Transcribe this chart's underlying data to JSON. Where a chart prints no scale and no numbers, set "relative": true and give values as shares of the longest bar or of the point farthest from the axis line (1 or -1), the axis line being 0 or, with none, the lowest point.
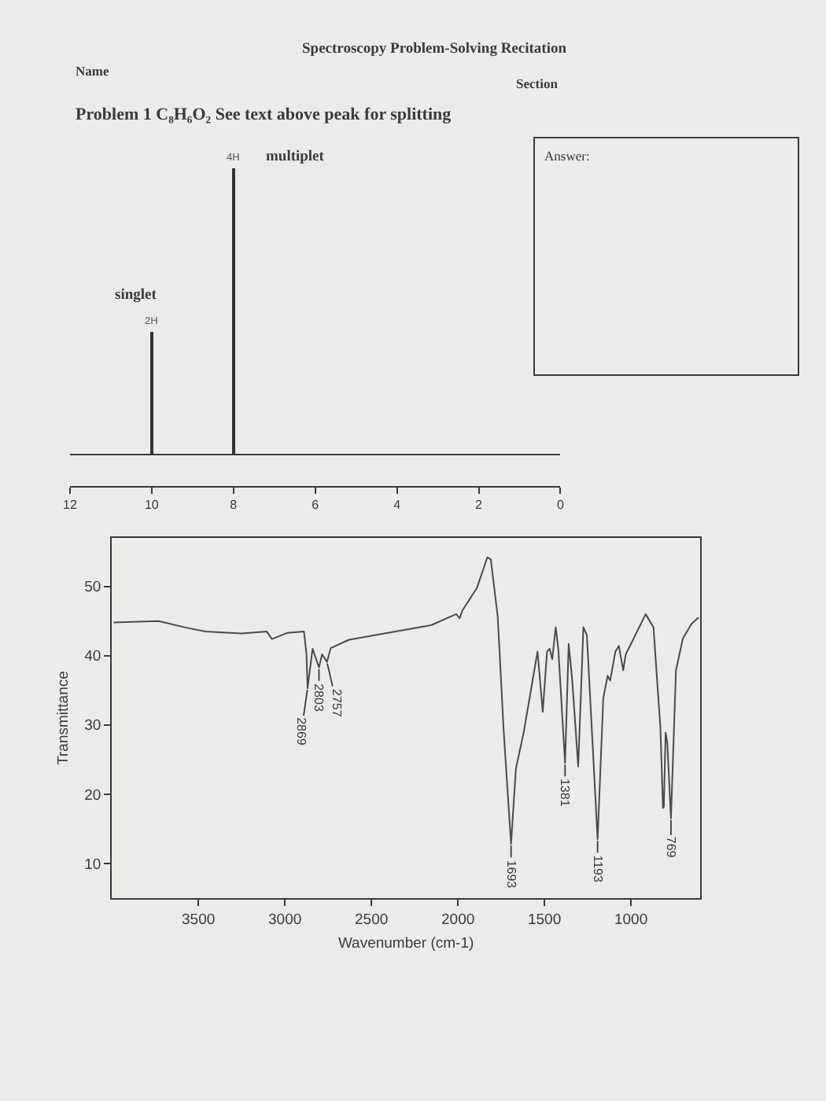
{
  "chart_data": [
    {
      "type": "bar",
      "title": "Spectroscopy Problem-Solving Recitation",
      "subtitle": "Problem 1 C₈H₆O₂ See text above peak for splitting",
      "x": [
        10,
        8
      ],
      "values": [
        0.43,
        1
      ],
      "relative": true,
      "color": "#333333",
      "xlim": [
        12,
        0
      ],
      "xticks": [
        12,
        10,
        8,
        6,
        4,
        2,
        0
      ],
      "tick_labels": "x",
      "annotations": [
        {
          "text": "singlet",
          "x": 10,
          "y": 0.43
        },
        {
          "text": "2H",
          "x": 10,
          "y": 0.43
        },
        {
          "text": "4H",
          "x": 8,
          "y": 1
        },
        {
          "text": "multiplet",
          "x": 8,
          "y": 1
        },
        "Name",
        "Section",
        "Answer:"
      ]
    },
    {
      "type": "line",
      "xlabel": "Wavenumber (cm-1)",
      "ylabel": "Transmittance",
      "color": "#4a4a4a",
      "xlim": [
        4000,
        600
      ],
      "ylim": [
        5,
        57
      ],
      "xticks": [
        3500,
        3000,
        2500,
        2000,
        1500,
        1000
      ],
      "yticks": [
        10,
        20,
        30,
        40,
        50
      ],
      "x": [
        3990,
        3730,
        3580,
        3460,
        3250,
        3105,
        3075,
        2985,
        2890,
        2875,
        2869,
        2840,
        2803,
        2785,
        2757,
        2735,
        2630,
        2335,
        2155,
        2010,
        1990,
        1975,
        1890,
        1830,
        1810,
        1770,
        1735,
        1693,
        1665,
        1620,
        1540,
        1510,
        1485,
        1470,
        1455,
        1435,
        1420,
        1381,
        1360,
        1340,
        1305,
        1275,
        1255,
        1193,
        1160,
        1135,
        1120,
        1090,
        1070,
        1045,
        1030,
        915,
        870,
        830,
        815,
        810,
        800,
        790,
        769,
        740,
        700,
        650,
        610
      ],
      "values": [
        44.8,
        45.0,
        44.1,
        43.5,
        43.2,
        43.5,
        42.4,
        43.3,
        43.5,
        40.2,
        35.3,
        41.0,
        38.3,
        40.2,
        39.1,
        41.1,
        42.3,
        43.6,
        44.4,
        46.0,
        45.4,
        46.5,
        49.8,
        54.2,
        53.9,
        45.6,
        28.9,
        12.8,
        23.7,
        28.9,
        40.6,
        31.9,
        40.6,
        41.0,
        39.5,
        44.1,
        41.0,
        24.5,
        41.7,
        36.6,
        24.0,
        44.1,
        43.0,
        13.5,
        33.9,
        37.1,
        36.4,
        40.6,
        41.4,
        37.9,
        40.2,
        46.0,
        44.1,
        29.6,
        18.0,
        18.2,
        28.9,
        27.4,
        16.5,
        37.9,
        42.5,
        44.6,
        45.5
      ],
      "annotations": [
        {
          "text": "2869",
          "x": 2869,
          "y": 35.3
        },
        {
          "text": "2803",
          "x": 2803,
          "y": 38.3
        },
        {
          "text": "2757",
          "x": 2757,
          "y": 39.1
        },
        {
          "text": "1693",
          "x": 1693,
          "y": 12.8
        },
        {
          "text": "1381",
          "x": 1381,
          "y": 24.5
        },
        {
          "text": "1193",
          "x": 1193,
          "y": 13.5
        },
        {
          "text": "769",
          "x": 769,
          "y": 16.5
        }
      ]
    }
  ]
}
